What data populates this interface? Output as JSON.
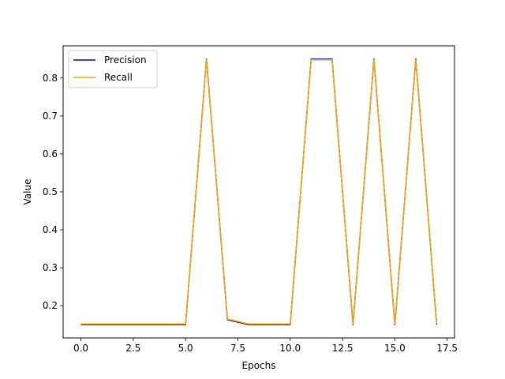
{
  "chart_data": {
    "type": "line",
    "title": "",
    "xlabel": "Epochs",
    "ylabel": "Value",
    "x": [
      0,
      1,
      2,
      3,
      4,
      5,
      6,
      7,
      8,
      9,
      10,
      11,
      12,
      13,
      14,
      15,
      16,
      17
    ],
    "xlim": [
      -0.85,
      17.85
    ],
    "ylim": [
      0.115,
      0.885
    ],
    "xticks": [
      0,
      2.5,
      5,
      7.5,
      10,
      12.5,
      15,
      17.5
    ],
    "xtick_labels": [
      "0.0",
      "2.5",
      "5.0",
      "7.5",
      "10.0",
      "12.5",
      "15.0",
      "17.5"
    ],
    "yticks": [
      0.2,
      0.3,
      0.4,
      0.5,
      0.6,
      0.7,
      0.8
    ],
    "ytick_labels": [
      "0.2",
      "0.3",
      "0.4",
      "0.5",
      "0.6",
      "0.7",
      "0.8"
    ],
    "grid": false,
    "legend_position": "top-left",
    "series": [
      {
        "name": "Precision",
        "color": "#0000cc",
        "values": [
          0.15,
          0.15,
          0.15,
          0.15,
          0.15,
          0.15,
          0.85,
          0.163,
          0.15,
          0.15,
          0.15,
          0.85,
          0.85,
          0.15,
          0.85,
          0.15,
          0.85,
          0.15
        ]
      },
      {
        "name": "Recall",
        "color": "#ffa500",
        "values": [
          0.152,
          0.152,
          0.152,
          0.152,
          0.152,
          0.152,
          0.848,
          0.165,
          0.152,
          0.152,
          0.152,
          0.848,
          0.848,
          0.152,
          0.848,
          0.152,
          0.848,
          0.152
        ]
      }
    ]
  }
}
